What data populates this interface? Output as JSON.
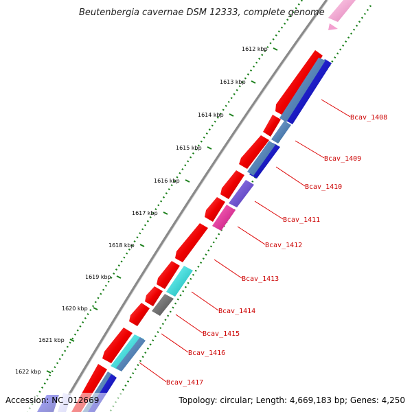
{
  "title": "Beutenbergia cavernae DSM 12333, complete genome",
  "footer": {
    "accession": "Accession: NC_012669",
    "topology": "Topology: circular; Length: 4,669,183 bp; Genes: 4,250"
  },
  "kbp_labels": [
    "1612 kbp",
    "1613 kbp",
    "1614 kbp",
    "1615 kbp",
    "1616 kbp",
    "1617 kbp",
    "1618 kbp",
    "1619 kbp",
    "1620 kbp",
    "1621 kbp",
    "1622 kbp"
  ],
  "gene_labels": [
    "Bcav_1408",
    "Bcav_1409",
    "Bcav_1410",
    "Bcav_1411",
    "Bcav_1412",
    "Bcav_1413",
    "Bcav_1414",
    "Bcav_1415",
    "Bcav_1416",
    "Bcav_1417"
  ],
  "colors": {
    "red_gene": "#ee0000",
    "blue_gene": "#0000dd",
    "steel_gene": "#4a7fb5",
    "purple_gene": "#6a4fd0",
    "magenta_gene": "#ee2fa0",
    "cyan_gene": "#20dcdc",
    "gray_gene": "#6e6e6e",
    "pink_gene": "#f3a0d0",
    "backbone": "#8a8a8a",
    "tick_dots": "#1a7f1a",
    "label_text": "#cc0000"
  }
}
